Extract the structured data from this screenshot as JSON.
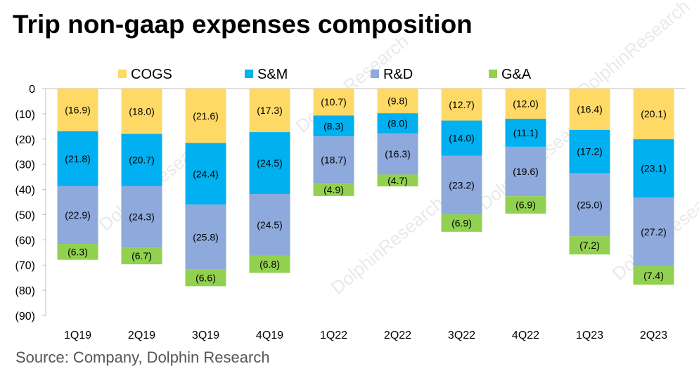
{
  "title": "Trip non-gaap expenses composition",
  "source": "Source: Company, Dolphin Research",
  "watermark": "DolphinResearch",
  "chart_data": {
    "type": "bar",
    "stacked": true,
    "categories": [
      "1Q19",
      "2Q19",
      "3Q19",
      "4Q19",
      "1Q22",
      "2Q22",
      "3Q22",
      "4Q22",
      "1Q23",
      "2Q23"
    ],
    "series": [
      {
        "name": "COGS",
        "color": "#FFD966",
        "values": [
          -16.9,
          -18.0,
          -21.6,
          -17.3,
          -10.7,
          -9.8,
          -12.7,
          -12.0,
          -16.4,
          -20.1
        ]
      },
      {
        "name": "S&M",
        "color": "#00B0F0",
        "values": [
          -21.8,
          -20.7,
          -24.4,
          -24.5,
          -8.3,
          -8.0,
          -14.0,
          -11.1,
          -17.2,
          -23.1
        ]
      },
      {
        "name": "R&D",
        "color": "#8EA9DB",
        "values": [
          -22.9,
          -24.3,
          -25.8,
          -24.5,
          -18.7,
          -16.3,
          -23.2,
          -19.6,
          -25.0,
          -27.2
        ]
      },
      {
        "name": "G&A",
        "color": "#92D050",
        "values": [
          -6.3,
          -6.7,
          -6.6,
          -6.8,
          -4.9,
          -4.7,
          -6.9,
          -6.9,
          -7.2,
          -7.4
        ]
      }
    ],
    "ylim": [
      -90,
      0
    ],
    "yticks": [
      0,
      -10,
      -20,
      -30,
      -40,
      -50,
      -60,
      -70,
      -80,
      -90
    ],
    "ytick_labels": [
      "0",
      "(10)",
      "(20)",
      "(30)",
      "(40)",
      "(50)",
      "(60)",
      "(70)",
      "(80)",
      "(90)"
    ],
    "label_format": "parentheses",
    "legend_position": "top",
    "grid": false
  }
}
